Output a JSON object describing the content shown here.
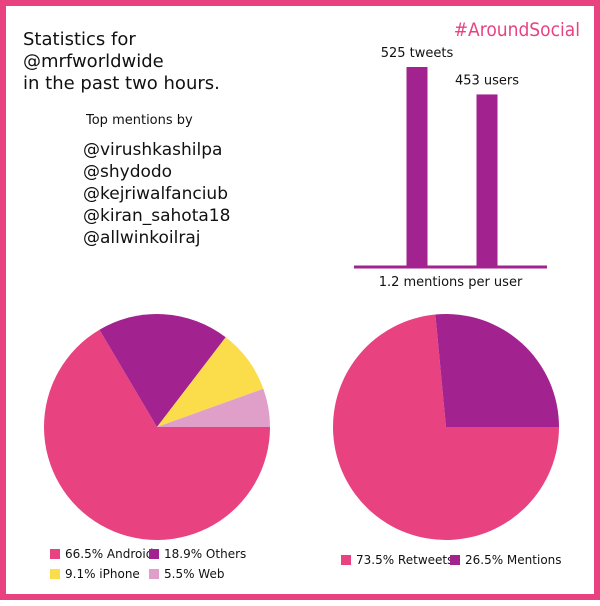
{
  "header": {
    "hashtag": "#AroundSocial",
    "title_lines": [
      "Statistics for",
      "@mrfworldwide",
      "in the past two hours."
    ]
  },
  "mentions": {
    "heading": "Top mentions by",
    "users": [
      "@virushkashilpa",
      "@shydodo",
      "@kejriwalfanciub",
      "@kiran_sahota18",
      "@allwinkoilraj"
    ]
  },
  "colors": {
    "pink": "#e84280",
    "purple": "#a2238f",
    "yellow": "#fbdc4b",
    "light_pink": "#df9fc9"
  },
  "chart_data": [
    {
      "type": "bar",
      "categories": [
        "tweets",
        "users"
      ],
      "values": [
        525,
        453
      ],
      "data_labels": [
        "525 tweets",
        "453 users"
      ],
      "xlabel": "1.2 mentions per user",
      "ylim": [
        0,
        525
      ],
      "grid": false
    },
    {
      "type": "pie",
      "labels": [
        "Android",
        "Others",
        "iPhone",
        "Web"
      ],
      "values": [
        66.5,
        18.9,
        9.1,
        5.5
      ],
      "legend": [
        "66.5% Android",
        "18.9% Others",
        "9.1% iPhone",
        "5.5% Web"
      ],
      "legend_placement": "bottom"
    },
    {
      "type": "pie",
      "labels": [
        "Retweets",
        "Mentions"
      ],
      "values": [
        73.5,
        26.5
      ],
      "legend": [
        "73.5% Retweets",
        "26.5% Mentions"
      ],
      "legend_placement": "bottom"
    }
  ]
}
